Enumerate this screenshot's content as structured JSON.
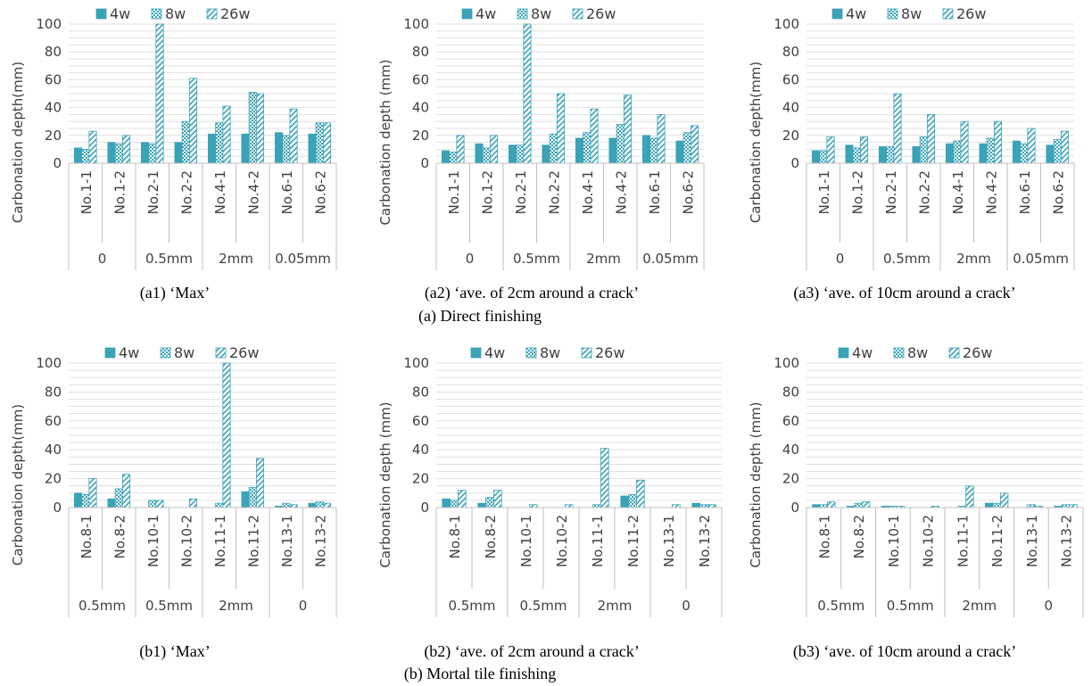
{
  "colors": {
    "series": "#3aa3b7",
    "grid": "#d9d9d9",
    "text": "#404040"
  },
  "section_captions": [
    "(a) Direct finishing",
    "(b) Mortal tile finishing"
  ],
  "chart_data": [
    {
      "type": "bar",
      "caption": "(a1) ‘Max’",
      "ylabel": "Carbonation depth(mm)",
      "ylim": [
        0,
        100
      ],
      "yticks": [
        0,
        20,
        40,
        60,
        80,
        100
      ],
      "categories": [
        "No.1-1",
        "No.1-2",
        "No.2-1",
        "No.2-2",
        "No.4-1",
        "No.4-2",
        "No.6-1",
        "No.6-2"
      ],
      "groups": [
        "0",
        "0.5mm",
        "2mm",
        "0.05mm"
      ],
      "series": [
        {
          "name": "4w",
          "values": [
            11,
            15,
            15,
            15,
            21,
            21,
            22,
            21
          ]
        },
        {
          "name": "8w",
          "values": [
            10,
            14,
            14,
            30,
            29,
            51,
            20,
            29
          ]
        },
        {
          "name": "26w",
          "values": [
            23,
            20,
            100,
            61,
            41,
            50,
            39,
            29
          ]
        }
      ]
    },
    {
      "type": "bar",
      "caption": "(a2) ‘ave. of 2cm around a crack’",
      "ylabel": "Carbonation depth (mm)",
      "ylim": [
        0,
        100
      ],
      "yticks": [
        0,
        20,
        40,
        60,
        80,
        100
      ],
      "categories": [
        "No.1-1",
        "No.1-2",
        "No.2-1",
        "No.2-2",
        "No.4-1",
        "No.4-2",
        "No.6-1",
        "No.6-2"
      ],
      "groups": [
        "0",
        "0.5mm",
        "2mm",
        "0.05mm"
      ],
      "series": [
        {
          "name": "4w",
          "values": [
            9,
            14,
            13,
            13,
            18,
            18,
            20,
            16
          ]
        },
        {
          "name": "8w",
          "values": [
            8,
            11,
            13,
            21,
            22,
            28,
            18,
            22
          ]
        },
        {
          "name": "26w",
          "values": [
            20,
            20,
            100,
            50,
            39,
            49,
            35,
            27
          ]
        }
      ]
    },
    {
      "type": "bar",
      "caption": "(a3) ‘ave. of 10cm around a crack’",
      "ylabel": "Carbonation depth(mm)",
      "ylim": [
        0,
        100
      ],
      "yticks": [
        0,
        20,
        40,
        60,
        80,
        100
      ],
      "categories": [
        "No.1-1",
        "No.1-2",
        "No.2-1",
        "No.2-2",
        "No.4-1",
        "No.4-2",
        "No.6-1",
        "No.6-2"
      ],
      "groups": [
        "0",
        "0.5mm",
        "2mm",
        "0.05mm"
      ],
      "series": [
        {
          "name": "4w",
          "values": [
            9,
            13,
            12,
            12,
            14,
            14,
            16,
            13
          ]
        },
        {
          "name": "8w",
          "values": [
            9,
            11,
            12,
            19,
            16,
            18,
            14,
            17
          ]
        },
        {
          "name": "26w",
          "values": [
            19,
            19,
            50,
            35,
            30,
            30,
            25,
            23
          ]
        }
      ]
    },
    {
      "type": "bar",
      "caption": "(b1) ‘Max’",
      "ylabel": "Carbonation depth(mm)",
      "ylim": [
        0,
        100
      ],
      "yticks": [
        0,
        20,
        40,
        60,
        80,
        100
      ],
      "categories": [
        "No.8-1",
        "No.8-2",
        "No.10-1",
        "No.10-2",
        "No.11-1",
        "No.11-2",
        "No.13-1",
        "No.13-2"
      ],
      "groups": [
        "0.5mm",
        "0.5mm",
        "2mm",
        "0"
      ],
      "series": [
        {
          "name": "4w",
          "values": [
            10,
            6,
            0,
            0,
            0,
            11,
            1,
            3
          ]
        },
        {
          "name": "8w",
          "values": [
            9,
            13,
            5,
            0,
            3,
            14,
            3,
            4
          ]
        },
        {
          "name": "26w",
          "values": [
            20,
            23,
            5,
            6,
            100,
            34,
            2,
            3
          ]
        }
      ]
    },
    {
      "type": "bar",
      "caption": "(b2) ‘ave. of 2cm around a crack’",
      "ylabel": "Carbonation depth (mm)",
      "ylim": [
        0,
        100
      ],
      "yticks": [
        0,
        20,
        40,
        60,
        80,
        100
      ],
      "categories": [
        "No.8-1",
        "No.8-2",
        "No.10-1",
        "No.10-2",
        "No.11-1",
        "No.11-2",
        "No.13-1",
        "No.13-2"
      ],
      "groups": [
        "0.5mm",
        "0.5mm",
        "2mm",
        "0"
      ],
      "series": [
        {
          "name": "4w",
          "values": [
            6,
            3,
            0,
            0,
            0,
            8,
            0,
            3
          ]
        },
        {
          "name": "8w",
          "values": [
            5,
            7,
            0,
            0,
            2,
            9,
            0,
            2
          ]
        },
        {
          "name": "26w",
          "values": [
            12,
            12,
            2,
            2,
            41,
            19,
            2,
            2
          ]
        }
      ]
    },
    {
      "type": "bar",
      "caption": "(b3) ‘ave. of 10cm around a crack’",
      "ylabel": "Carbonation depth (mm)",
      "ylim": [
        0,
        100
      ],
      "yticks": [
        0,
        20,
        40,
        60,
        80,
        100
      ],
      "categories": [
        "No.8-1",
        "No.8-2",
        "No.10-1",
        "No.10-2",
        "No.11-1",
        "No.11-2",
        "No.13-1",
        "No.13-2"
      ],
      "groups": [
        "0.5mm",
        "0.5mm",
        "2mm",
        "0"
      ],
      "series": [
        {
          "name": "4w",
          "values": [
            2,
            1,
            1,
            0,
            0,
            3,
            0,
            1
          ]
        },
        {
          "name": "8w",
          "values": [
            2,
            3,
            1,
            0,
            1,
            3,
            2,
            2
          ]
        },
        {
          "name": "26w",
          "values": [
            4,
            4,
            1,
            1,
            15,
            10,
            1,
            2
          ]
        }
      ]
    }
  ]
}
